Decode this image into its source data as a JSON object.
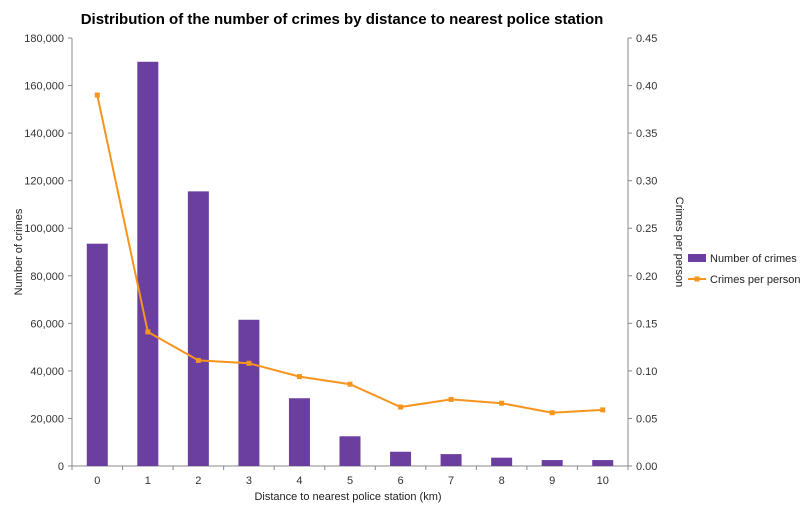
{
  "chart_data": {
    "type": "bar",
    "title": "Distribution of the number of crimes by distance to nearest police station",
    "xlabel": "Distance to nearest police station (km)",
    "ylabel": "Number of crimes",
    "y2label": "Crimes per person",
    "categories": [
      "0",
      "1",
      "2",
      "3",
      "4",
      "5",
      "6",
      "7",
      "8",
      "9",
      "10"
    ],
    "series": [
      {
        "name": "Number of crimes",
        "type": "bar",
        "axis": "left",
        "color": "#6B3FA0",
        "values": [
          93500,
          170000,
          115500,
          61500,
          28500,
          12500,
          6000,
          5000,
          3500,
          2500,
          2500
        ]
      },
      {
        "name": "Crimes per person",
        "type": "line",
        "axis": "right",
        "color": "#F7941D",
        "values": [
          0.39,
          0.141,
          0.111,
          0.108,
          0.094,
          0.086,
          0.062,
          0.07,
          0.066,
          0.056,
          0.059
        ]
      }
    ],
    "ylim": [
      0,
      180000
    ],
    "y2lim": [
      0,
      0.45
    ],
    "yticks": [
      "0",
      "20,000",
      "40,000",
      "60,000",
      "80,000",
      "100,000",
      "120,000",
      "140,000",
      "160,000",
      "180,000"
    ],
    "y2ticks": [
      "0.00",
      "0.05",
      "0.10",
      "0.15",
      "0.20",
      "0.25",
      "0.30",
      "0.35",
      "0.40",
      "0.45"
    ],
    "grid": false,
    "legend": "right"
  }
}
